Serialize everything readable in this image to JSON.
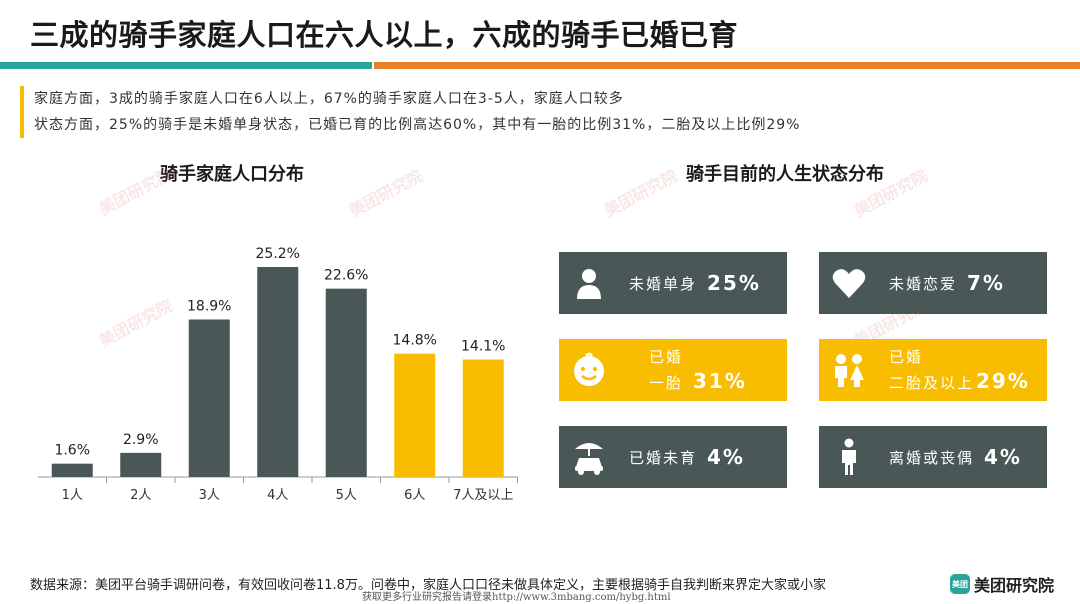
{
  "title": "三成的骑手家庭人口在六人以上，六成的骑手已婚已育",
  "summary": {
    "line1": "家庭方面，3成的骑手家庭人口在6人以上，67%的骑手家庭人口在3-5人，家庭人口较多",
    "line2": "状态方面，25%的骑手是未婚单身状态，已婚已育的比例高达60%，其中有一胎的比例31%，二胎及以上比例29%"
  },
  "left_chart_title": "骑手家庭人口分布",
  "right_chart_title": "骑手目前的人生状态分布",
  "chart_data": {
    "type": "bar",
    "categories": [
      "1人",
      "2人",
      "3人",
      "4人",
      "5人",
      "6人",
      "7人及以上"
    ],
    "values": [
      1.6,
      2.9,
      18.9,
      25.2,
      22.6,
      14.8,
      14.1
    ],
    "data_labels": [
      "1.6%",
      "2.9%",
      "18.9%",
      "25.2%",
      "22.6%",
      "14.8%",
      "14.1%"
    ],
    "bar_colors": [
      "#4a5757",
      "#4a5757",
      "#4a5757",
      "#4a5757",
      "#4a5757",
      "#f8bd00",
      "#f8bd00"
    ],
    "title": "骑手家庭人口分布",
    "xlabel": "",
    "ylabel": "",
    "ylim": [
      0,
      25.2
    ],
    "grid": false,
    "legend": "none"
  },
  "status_cards": [
    {
      "label": "未婚单身",
      "value": "25%",
      "icon": "person-icon",
      "color": "#4a5757"
    },
    {
      "label": "未婚恋爱",
      "value": "7%",
      "icon": "heart-icon",
      "color": "#4a5757"
    },
    {
      "label": "已婚",
      "label2": "一胎",
      "value": "31%",
      "icon": "baby-face-icon",
      "color": "#f8bd00"
    },
    {
      "label": "已婚",
      "label2": "二胎及以上",
      "value": "29%",
      "icon": "two-children-icon",
      "color": "#f8bd00"
    },
    {
      "label": "已婚未育",
      "value": "4%",
      "icon": "car-umbrella-icon",
      "color": "#4a5757"
    },
    {
      "label": "离婚或丧偶",
      "value": "4%",
      "icon": "standing-person-icon",
      "color": "#4a5757"
    }
  ],
  "watermark": "美团研究院",
  "footer": {
    "source": "数据来源：美团平台骑手调研问卷，有效回收问卷11.8万。问卷中，家庭人口口径未做具体定义，主要根据骑手自我判断来界定大家或小家",
    "download_note": "获取更多行业研究报告请登录http://www.3mbang.com/hybg.html",
    "brand_logo": "美团",
    "brand": "美团研究院"
  }
}
